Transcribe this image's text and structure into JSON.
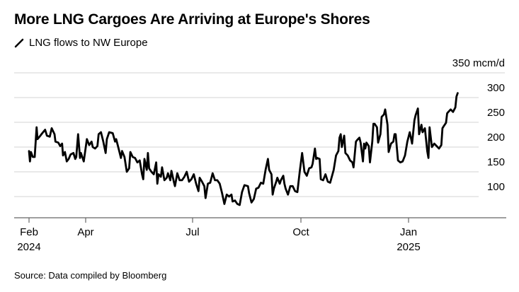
{
  "chart_data": {
    "type": "line",
    "title": "More LNG Cargoes Are Arriving at Europe's Shores",
    "legend": [
      {
        "name": "LNG flows to NW Europe",
        "color": "#000000"
      }
    ],
    "ylabel_unit": "350 mcm/d",
    "ylim": [
      62,
      350
    ],
    "yticks": [
      {
        "value": 350,
        "label": "350 mcm/d"
      },
      {
        "value": 300,
        "label": "300"
      },
      {
        "value": 250,
        "label": "250"
      },
      {
        "value": 200,
        "label": "200"
      },
      {
        "value": 150,
        "label": "150"
      },
      {
        "value": 100,
        "label": "100"
      }
    ],
    "x_unit": "days since 2024-02-01",
    "xticks": [
      {
        "day": 0,
        "label": "Feb",
        "year": "2024"
      },
      {
        "day": 60,
        "label": "Apr",
        "year": ""
      },
      {
        "day": 151,
        "label": "Jul",
        "year": ""
      },
      {
        "day": 243,
        "label": "Oct",
        "year": ""
      },
      {
        "day": 335,
        "label": "Jan",
        "year": "2025"
      }
    ],
    "grid": true,
    "series": [
      {
        "name": "LNG flows to NW Europe",
        "color": "#000000",
        "points": [
          [
            0,
            192
          ],
          [
            1,
            171
          ],
          [
            2,
            190
          ],
          [
            4,
            180
          ],
          [
            6,
            180
          ],
          [
            8,
            240
          ],
          [
            9,
            216
          ],
          [
            12,
            223
          ],
          [
            14,
            228
          ],
          [
            17,
            235
          ],
          [
            19,
            223
          ],
          [
            22,
            221
          ],
          [
            24,
            238
          ],
          [
            27,
            226
          ],
          [
            28,
            211
          ],
          [
            31,
            209
          ],
          [
            33,
            202
          ],
          [
            35,
            207
          ],
          [
            36,
            183
          ],
          [
            38,
            190
          ],
          [
            40,
            171
          ],
          [
            42,
            176
          ],
          [
            44,
            185
          ],
          [
            47,
            188
          ],
          [
            49,
            176
          ],
          [
            50,
            180
          ],
          [
            52,
            226
          ],
          [
            54,
            178
          ],
          [
            55,
            188
          ],
          [
            58,
            171
          ],
          [
            61,
            216
          ],
          [
            63,
            204
          ],
          [
            65,
            211
          ],
          [
            66,
            200
          ],
          [
            68,
            197
          ],
          [
            70,
            202
          ],
          [
            71,
            226
          ],
          [
            73,
            230
          ],
          [
            75,
            211
          ],
          [
            77,
            188
          ],
          [
            78,
            216
          ],
          [
            80,
            230
          ],
          [
            83,
            228
          ],
          [
            85,
            211
          ],
          [
            86,
            216
          ],
          [
            88,
            197
          ],
          [
            90,
            178
          ],
          [
            91,
            192
          ],
          [
            93,
            180
          ],
          [
            95,
            150
          ],
          [
            97,
            157
          ],
          [
            98,
            190
          ],
          [
            100,
            180
          ],
          [
            102,
            178
          ],
          [
            104,
            169
          ],
          [
            106,
            173
          ],
          [
            108,
            145
          ],
          [
            109,
            135
          ],
          [
            110,
            176
          ],
          [
            112,
            154
          ],
          [
            113,
            188
          ],
          [
            114,
            157
          ],
          [
            116,
            150
          ],
          [
            118,
            145
          ],
          [
            120,
            169
          ],
          [
            121,
            126
          ],
          [
            122,
            145
          ],
          [
            124,
            140
          ],
          [
            125,
            159
          ],
          [
            127,
            133
          ],
          [
            129,
            138
          ],
          [
            130,
            147
          ],
          [
            132,
            133
          ],
          [
            133,
            152
          ],
          [
            135,
            130
          ],
          [
            136,
            121
          ],
          [
            138,
            147
          ],
          [
            140,
            133
          ],
          [
            142,
            133
          ],
          [
            144,
            140
          ],
          [
            146,
            150
          ],
          [
            148,
            130
          ],
          [
            150,
            135
          ],
          [
            152,
            145
          ],
          [
            154,
            126
          ],
          [
            156,
            111
          ],
          [
            157,
            138
          ],
          [
            159,
            130
          ],
          [
            161,
            121
          ],
          [
            162,
            97
          ],
          [
            164,
            126
          ],
          [
            166,
            128
          ],
          [
            168,
            147
          ],
          [
            170,
            133
          ],
          [
            172,
            133
          ],
          [
            174,
            126
          ],
          [
            176,
            107
          ],
          [
            178,
            85
          ],
          [
            180,
            104
          ],
          [
            182,
            100
          ],
          [
            184,
            104
          ],
          [
            185,
            90
          ],
          [
            187,
            92
          ],
          [
            189,
            85
          ],
          [
            191,
            83
          ],
          [
            193,
            109
          ],
          [
            195,
            123
          ],
          [
            198,
            121
          ],
          [
            199,
            107
          ],
          [
            201,
            88
          ],
          [
            203,
            95
          ],
          [
            205,
            116
          ],
          [
            207,
            118
          ],
          [
            209,
            128
          ],
          [
            211,
            126
          ],
          [
            213,
            154
          ],
          [
            215,
            176
          ],
          [
            216,
            154
          ],
          [
            218,
            145
          ],
          [
            219,
            104
          ],
          [
            220,
            116
          ],
          [
            222,
            130
          ],
          [
            223,
            138
          ],
          [
            225,
            126
          ],
          [
            226,
            133
          ],
          [
            228,
            142
          ],
          [
            229,
            126
          ],
          [
            230,
            116
          ],
          [
            232,
            104
          ],
          [
            234,
            121
          ],
          [
            236,
            121
          ],
          [
            238,
            111
          ],
          [
            240,
            109
          ],
          [
            242,
            150
          ],
          [
            244,
            188
          ],
          [
            246,
            150
          ],
          [
            248,
            142
          ],
          [
            250,
            157
          ],
          [
            252,
            159
          ],
          [
            253,
            166
          ],
          [
            255,
            197
          ],
          [
            256,
            176
          ],
          [
            257,
            178
          ],
          [
            259,
            176
          ],
          [
            260,
            135
          ],
          [
            262,
            133
          ],
          [
            264,
            145
          ],
          [
            266,
            130
          ],
          [
            268,
            128
          ],
          [
            271,
            154
          ],
          [
            273,
            183
          ],
          [
            275,
            192
          ],
          [
            276,
            219
          ],
          [
            277,
            226
          ],
          [
            278,
            200
          ],
          [
            280,
            223
          ],
          [
            281,
            188
          ],
          [
            283,
            183
          ],
          [
            285,
            173
          ],
          [
            287,
            169
          ],
          [
            288,
            159
          ],
          [
            290,
            211
          ],
          [
            291,
            214
          ],
          [
            293,
            219
          ],
          [
            294,
            209
          ],
          [
            296,
            171
          ],
          [
            297,
            207
          ],
          [
            298,
            197
          ],
          [
            299,
            209
          ],
          [
            301,
            202
          ],
          [
            302,
            169
          ],
          [
            304,
            211
          ],
          [
            305,
            247
          ],
          [
            306,
            247
          ],
          [
            308,
            240
          ],
          [
            309,
            209
          ],
          [
            311,
            226
          ],
          [
            312,
            261
          ],
          [
            314,
            266
          ],
          [
            315,
            276
          ],
          [
            317,
            245
          ],
          [
            318,
            190
          ],
          [
            320,
            207
          ],
          [
            322,
            211
          ],
          [
            323,
            226
          ],
          [
            324,
            226
          ],
          [
            326,
            173
          ],
          [
            328,
            169
          ],
          [
            330,
            171
          ],
          [
            332,
            183
          ],
          [
            334,
            211
          ],
          [
            336,
            230
          ],
          [
            338,
            207
          ],
          [
            340,
            254
          ],
          [
            341,
            264
          ],
          [
            343,
            278
          ],
          [
            344,
            226
          ],
          [
            346,
            245
          ],
          [
            347,
            230
          ],
          [
            349,
            238
          ],
          [
            351,
            192
          ],
          [
            352,
            178
          ],
          [
            353,
            240
          ],
          [
            355,
            200
          ],
          [
            357,
            207
          ],
          [
            359,
            202
          ],
          [
            361,
            197
          ],
          [
            363,
            204
          ],
          [
            364,
            238
          ],
          [
            365,
            242
          ],
          [
            367,
            249
          ],
          [
            368,
            268
          ],
          [
            369,
            271
          ],
          [
            371,
            276
          ],
          [
            373,
            271
          ],
          [
            375,
            280
          ],
          [
            376,
            302
          ],
          [
            377,
            309
          ]
        ]
      }
    ],
    "source": "Source: Data compiled by Bloomberg"
  }
}
